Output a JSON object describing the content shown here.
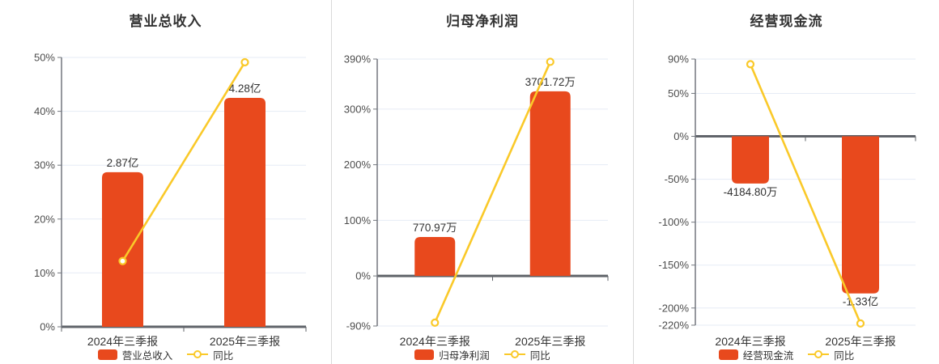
{
  "colors": {
    "bar": "#e8491d",
    "line": "#fac929",
    "grid": "#e6ebf5",
    "axis": "#60646a",
    "axis_vertical": "#73777e",
    "divider": "#d9d9d9",
    "title_text": "#333333",
    "tick_text": "#4d4d4d",
    "label_text": "#333333",
    "marker_fill": "#ffffff"
  },
  "chart_data": [
    {
      "type": "bar",
      "title": "营业总收入",
      "categories": [
        "2024年三季报",
        "2025年三季报"
      ],
      "legend": [
        "营业总收入",
        "同比"
      ],
      "legend_position": "bottom",
      "grid": true,
      "y_axis": {
        "min": 0,
        "max": 50,
        "tick_values": [
          50,
          40,
          30,
          20,
          10,
          0
        ],
        "tick_labels": [
          "50%",
          "40%",
          "30%",
          "20%",
          "10%",
          "0%"
        ]
      },
      "series": [
        {
          "name": "营业总收入",
          "type": "bar",
          "unit": "亿",
          "values_numeric": [
            2.87,
            4.28
          ],
          "data_labels": [
            "2.87亿",
            "4.28亿"
          ],
          "bar_axis_values": [
            28.7,
            42.5
          ]
        },
        {
          "name": "同比",
          "type": "line",
          "unit": "%",
          "values": [
            12.2,
            49.1
          ]
        }
      ]
    },
    {
      "type": "bar",
      "title": "归母净利润",
      "categories": [
        "2024年三季报",
        "2025年三季报"
      ],
      "legend": [
        "归母净利润",
        "同比"
      ],
      "legend_position": "bottom",
      "grid": true,
      "y_axis": {
        "min": -90,
        "max": 390,
        "tick_values": [
          390,
          300,
          200,
          100,
          0,
          -90
        ],
        "tick_labels": [
          "390%",
          "300%",
          "200%",
          "100%",
          "0%",
          "-90%"
        ]
      },
      "series": [
        {
          "name": "归母净利润",
          "type": "bar",
          "unit": "万",
          "values_numeric": [
            770.97,
            3701.72
          ],
          "data_labels": [
            "770.97万",
            "3701.72万"
          ],
          "bar_axis_values": [
            70,
            332
          ]
        },
        {
          "name": "同比",
          "type": "line",
          "unit": "%",
          "values": [
            -84,
            385
          ]
        }
      ]
    },
    {
      "type": "bar",
      "title": "经营现金流",
      "categories": [
        "2024年三季报",
        "2025年三季报"
      ],
      "legend": [
        "经营现金流",
        "同比"
      ],
      "legend_position": "bottom",
      "grid": true,
      "y_axis": {
        "min": -220,
        "max": 90,
        "tick_values": [
          90,
          50,
          0,
          -50,
          -100,
          -150,
          -200,
          -220
        ],
        "tick_labels": [
          "90%",
          "50%",
          "0%",
          "-50%",
          "-100%",
          "-150%",
          "-200%",
          "-220%"
        ]
      },
      "series": [
        {
          "name": "经营现金流",
          "type": "bar",
          "unit": "万",
          "values_numeric": [
            -4184.8,
            -13300
          ],
          "data_labels": [
            "-4184.80万",
            "-1.33亿"
          ],
          "bar_axis_values": [
            -55,
            -183
          ]
        },
        {
          "name": "同比",
          "type": "line",
          "unit": "%",
          "values": [
            84,
            -218
          ]
        }
      ]
    }
  ]
}
